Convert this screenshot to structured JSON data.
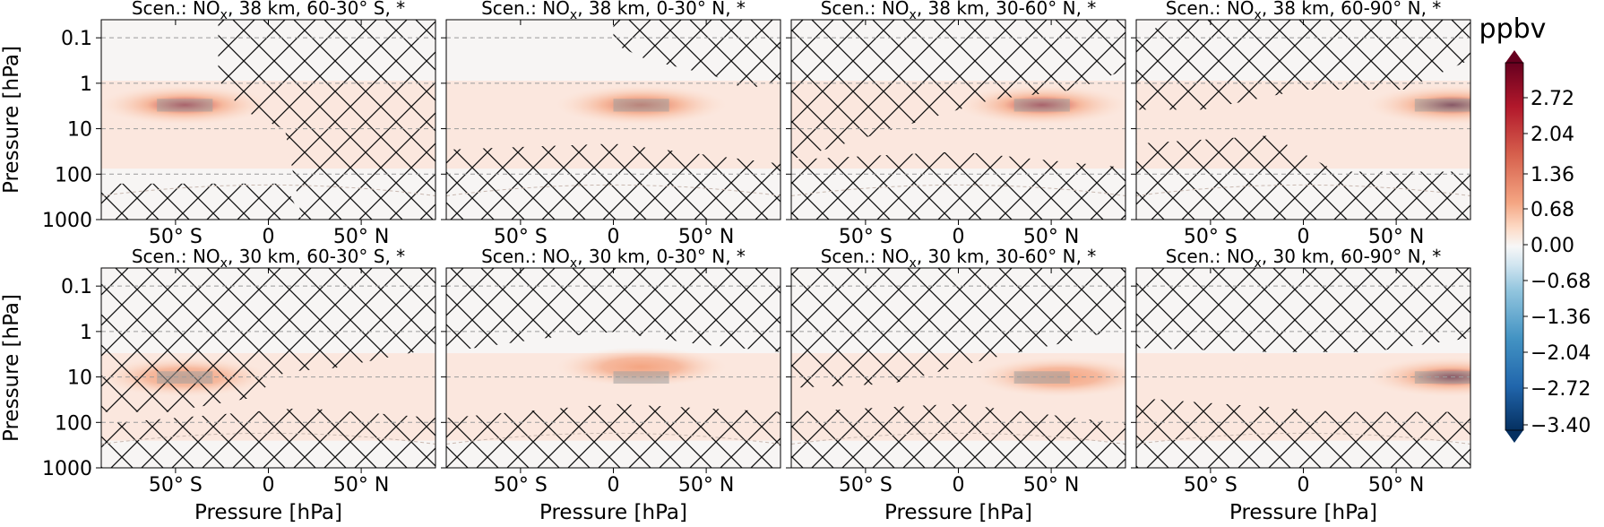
{
  "colorbar": {
    "label": "ppbv",
    "ticks": [
      "2.72",
      "2.04",
      "1.36",
      "0.68",
      "0.00",
      "−0.68",
      "−1.36",
      "−2.04",
      "−2.72",
      "−3.40"
    ],
    "range": [
      -3.4,
      3.4
    ],
    "colors": {
      "high": "#67001f",
      "mid": "#f7f7f7",
      "low": "#053061"
    }
  },
  "chart_data": [
    {
      "type": "heatmap",
      "title_prefix": "Scen.: NO",
      "title_sub": "x",
      "title_suffix": ", 38 km, 60-30° S, *",
      "xlabel": "",
      "ylabel": "Pressure [hPa]",
      "x_ticks": [
        "50° S",
        "0",
        "50° N"
      ],
      "y_ticks": [
        "0.1",
        "1",
        "10",
        "100",
        "1000"
      ],
      "xlim": [
        -90,
        90
      ],
      "ylim": [
        1000,
        0.04
      ],
      "y_scale": "log",
      "emission_region": {
        "lat": [
          -60,
          -30
        ],
        "pressure_hPa": [
          2.2,
          4.2
        ]
      },
      "peak": {
        "lat": -45,
        "pressure_hPa": 3,
        "value": 2.6
      }
    },
    {
      "type": "heatmap",
      "title_prefix": "Scen.: NO",
      "title_sub": "x",
      "title_suffix": ", 38 km, 0-30° N, *",
      "xlabel": "",
      "ylabel": "",
      "x_ticks": [
        "50° S",
        "0",
        "50° N"
      ],
      "y_ticks": [
        "0.1",
        "1",
        "10",
        "100",
        "1000"
      ],
      "xlim": [
        -90,
        90
      ],
      "ylim": [
        1000,
        0.04
      ],
      "y_scale": "log",
      "emission_region": {
        "lat": [
          0,
          30
        ],
        "pressure_hPa": [
          2.2,
          4.2
        ]
      },
      "peak": {
        "lat": 15,
        "pressure_hPa": 3,
        "value": 1.7
      }
    },
    {
      "type": "heatmap",
      "title_prefix": "Scen.: NO",
      "title_sub": "x",
      "title_suffix": ", 38 km, 30-60° N, *",
      "xlabel": "",
      "ylabel": "",
      "x_ticks": [
        "50° S",
        "0",
        "50° N"
      ],
      "y_ticks": [
        "0.1",
        "1",
        "10",
        "100",
        "1000"
      ],
      "xlim": [
        -90,
        90
      ],
      "ylim": [
        1000,
        0.04
      ],
      "y_scale": "log",
      "emission_region": {
        "lat": [
          30,
          60
        ],
        "pressure_hPa": [
          2.2,
          4.2
        ]
      },
      "peak": {
        "lat": 45,
        "pressure_hPa": 3,
        "value": 2.4
      }
    },
    {
      "type": "heatmap",
      "title_prefix": "Scen.: NO",
      "title_sub": "x",
      "title_suffix": ", 38 km, 60-90° N, *",
      "xlabel": "",
      "ylabel": "",
      "x_ticks": [
        "50° S",
        "0",
        "50° N"
      ],
      "y_ticks": [
        "0.1",
        "1",
        "10",
        "100",
        "1000"
      ],
      "xlim": [
        -90,
        90
      ],
      "ylim": [
        1000,
        0.04
      ],
      "y_scale": "log",
      "emission_region": {
        "lat": [
          60,
          90
        ],
        "pressure_hPa": [
          2.2,
          4.2
        ]
      },
      "peak": {
        "lat": 80,
        "pressure_hPa": 3,
        "value": 3.4
      }
    },
    {
      "type": "heatmap",
      "title_prefix": "Scen.: NO",
      "title_sub": "x",
      "title_suffix": ", 30 km, 60-30° S, *",
      "xlabel": "Pressure [hPa]",
      "ylabel": "Pressure [hPa]",
      "x_ticks": [
        "50° S",
        "0",
        "50° N"
      ],
      "y_ticks": [
        "0.1",
        "1",
        "10",
        "100",
        "1000"
      ],
      "xlim": [
        -90,
        90
      ],
      "ylim": [
        1000,
        0.04
      ],
      "y_scale": "log",
      "emission_region": {
        "lat": [
          -60,
          -30
        ],
        "pressure_hPa": [
          7.5,
          14
        ]
      },
      "peak": {
        "lat": -45,
        "pressure_hPa": 10,
        "value": 0.6
      }
    },
    {
      "type": "heatmap",
      "title_prefix": "Scen.: NO",
      "title_sub": "x",
      "title_suffix": ", 30 km, 0-30° N, *",
      "xlabel": "Pressure [hPa]",
      "ylabel": "",
      "x_ticks": [
        "50° S",
        "0",
        "50° N"
      ],
      "y_ticks": [
        "0.1",
        "1",
        "10",
        "100",
        "1000"
      ],
      "xlim": [
        -90,
        90
      ],
      "ylim": [
        1000,
        0.04
      ],
      "y_scale": "log",
      "emission_region": {
        "lat": [
          0,
          30
        ],
        "pressure_hPa": [
          7.5,
          14
        ]
      },
      "peak": {
        "lat": 15,
        "pressure_hPa": 6,
        "value": 0.5
      }
    },
    {
      "type": "heatmap",
      "title_prefix": "Scen.: NO",
      "title_sub": "x",
      "title_suffix": ", 30 km, 30-60° N, *",
      "xlabel": "Pressure [hPa]",
      "ylabel": "",
      "x_ticks": [
        "50° S",
        "0",
        "50° N"
      ],
      "y_ticks": [
        "0.1",
        "1",
        "10",
        "100",
        "1000"
      ],
      "xlim": [
        -90,
        90
      ],
      "ylim": [
        1000,
        0.04
      ],
      "y_scale": "log",
      "emission_region": {
        "lat": [
          30,
          60
        ],
        "pressure_hPa": [
          7.5,
          14
        ]
      },
      "peak": {
        "lat": 55,
        "pressure_hPa": 10,
        "value": 1.0
      }
    },
    {
      "type": "heatmap",
      "title_prefix": "Scen.: NO",
      "title_sub": "x",
      "title_suffix": ", 30 km, 60-90° N, *",
      "xlabel": "Pressure [hPa]",
      "ylabel": "",
      "x_ticks": [
        "50° S",
        "0",
        "50° N"
      ],
      "y_ticks": [
        "0.1",
        "1",
        "10",
        "100",
        "1000"
      ],
      "xlim": [
        -90,
        90
      ],
      "ylim": [
        1000,
        0.04
      ],
      "y_scale": "log",
      "emission_region": {
        "lat": [
          60,
          90
        ],
        "pressure_hPa": [
          7.5,
          14
        ]
      },
      "peak": {
        "lat": 80,
        "pressure_hPa": 10,
        "value": 2.9
      }
    }
  ]
}
